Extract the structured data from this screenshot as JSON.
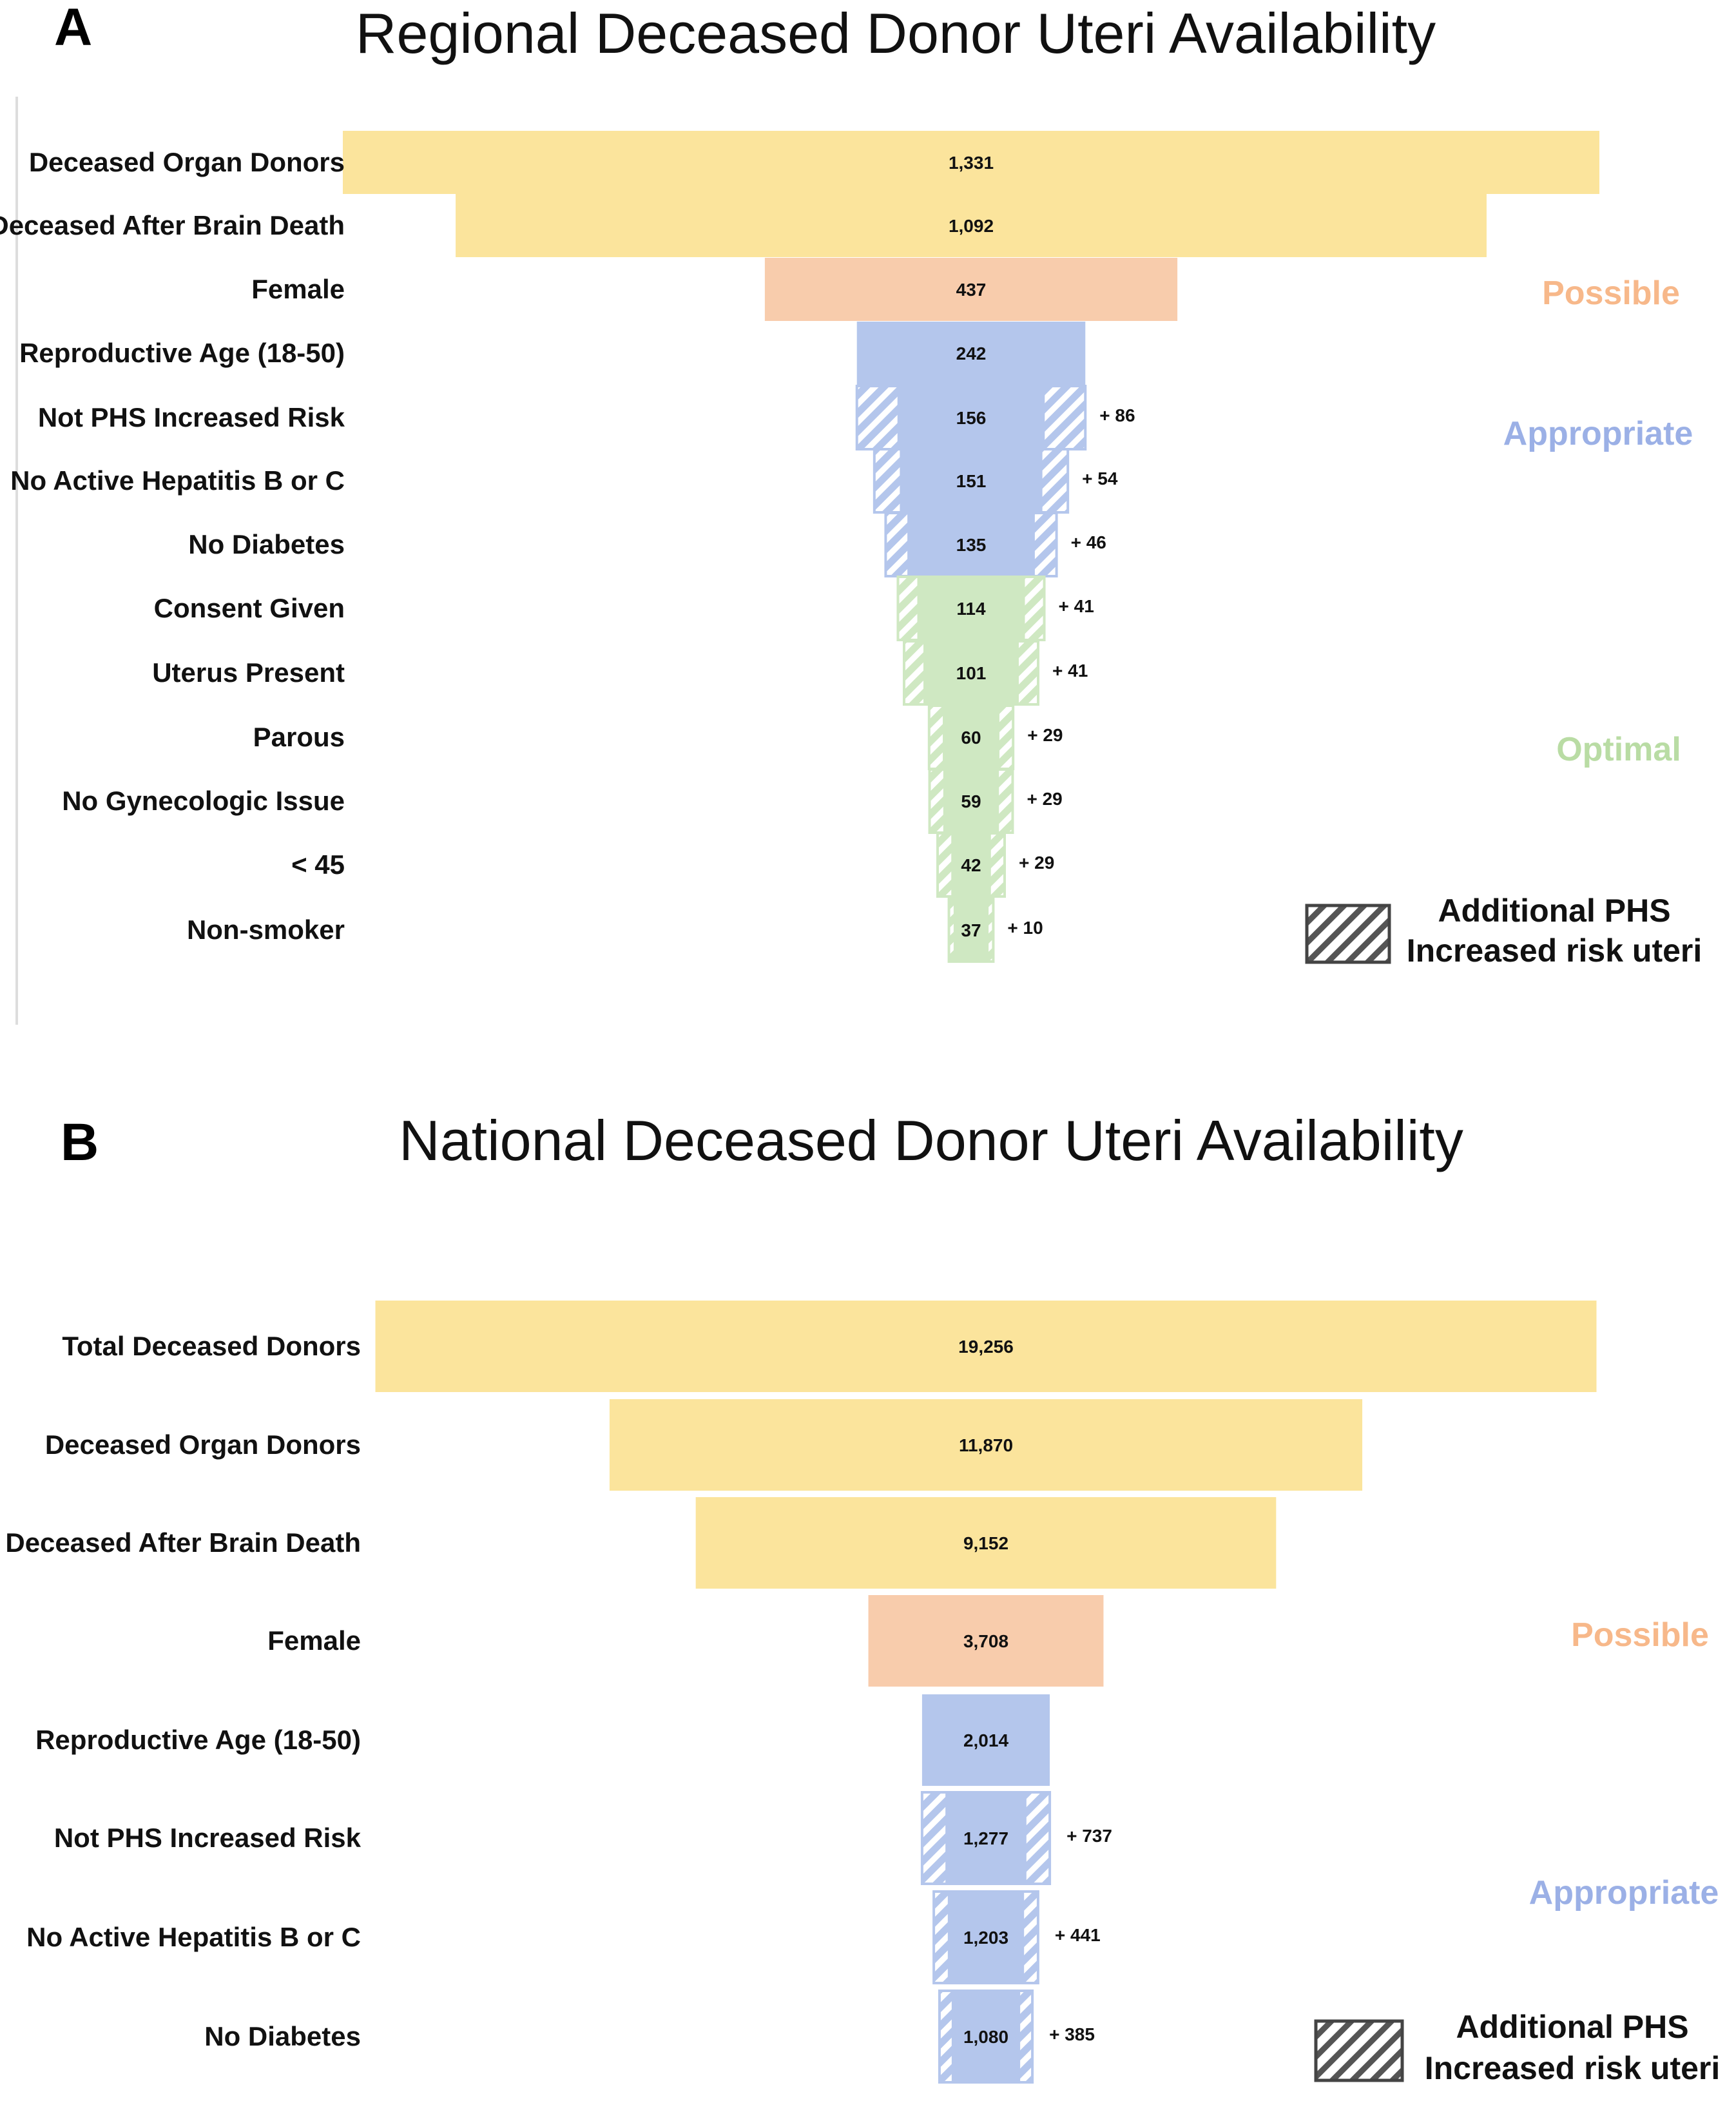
{
  "colors": {
    "yellow": "#fbe49c",
    "orange": "#f8ccac",
    "blue": "#b4c6ec",
    "green": "#cfe8c2",
    "possible_label": "#f7b88a",
    "appropriate_label": "#9bb0e6",
    "optimal_label": "#b9dca4"
  },
  "chart_data": [
    {
      "type": "funnel",
      "panel": "A",
      "title": "Regional Deceased Donor Uteri Availability",
      "stages": [
        {
          "label": "Deceased Organ Donors",
          "value": 1331,
          "value_label": "1,331",
          "extra": null,
          "extra_label": "",
          "color": "yellow"
        },
        {
          "label": "Deceased After Brain Death",
          "value": 1092,
          "value_label": "1,092",
          "extra": null,
          "extra_label": "",
          "color": "yellow"
        },
        {
          "label": "Female",
          "value": 437,
          "value_label": "437",
          "extra": null,
          "extra_label": "",
          "color": "orange"
        },
        {
          "label": "Reproductive Age (18-50)",
          "value": 242,
          "value_label": "242",
          "extra": null,
          "extra_label": "",
          "color": "blue"
        },
        {
          "label": "Not PHS Increased Risk",
          "value": 156,
          "value_label": "156",
          "extra": 86,
          "extra_label": "+ 86",
          "color": "blue"
        },
        {
          "label": "No Active Hepatitis B or C",
          "value": 151,
          "value_label": "151",
          "extra": 54,
          "extra_label": "+ 54",
          "color": "blue"
        },
        {
          "label": "No Diabetes",
          "value": 135,
          "value_label": "135",
          "extra": 46,
          "extra_label": "+ 46",
          "color": "blue"
        },
        {
          "label": "Consent Given",
          "value": 114,
          "value_label": "114",
          "extra": 41,
          "extra_label": "+ 41",
          "color": "green"
        },
        {
          "label": "Uterus Present",
          "value": 101,
          "value_label": "101",
          "extra": 41,
          "extra_label": "+ 41",
          "color": "green"
        },
        {
          "label": "Parous",
          "value": 60,
          "value_label": "60",
          "extra": 29,
          "extra_label": "+ 29",
          "color": "green"
        },
        {
          "label": "No Gynecologic Issue",
          "value": 59,
          "value_label": "59",
          "extra": 29,
          "extra_label": "+ 29",
          "color": "green"
        },
        {
          "label": "< 45",
          "value": 42,
          "value_label": "42",
          "extra": 29,
          "extra_label": "+ 29",
          "color": "green"
        },
        {
          "label": "Non-smoker",
          "value": 37,
          "value_label": "37",
          "extra": 10,
          "extra_label": "+ 10",
          "color": "green"
        }
      ],
      "categories": [
        {
          "label": "Possible",
          "color": "possible_label"
        },
        {
          "label": "Appropriate",
          "color": "appropriate_label"
        },
        {
          "label": "Optimal",
          "color": "optimal_label"
        }
      ],
      "legend": {
        "line1": "Additional PHS",
        "line2": "Increased risk uteri"
      }
    },
    {
      "type": "funnel",
      "panel": "B",
      "title": "National Deceased Donor Uteri Availability",
      "stages": [
        {
          "label": "Total Deceased Donors",
          "value": 19256,
          "value_label": "19,256",
          "extra": null,
          "extra_label": "",
          "color": "yellow"
        },
        {
          "label": "Deceased Organ Donors",
          "value": 11870,
          "value_label": "11,870",
          "extra": null,
          "extra_label": "",
          "color": "yellow"
        },
        {
          "label": "Deceased After Brain Death",
          "value": 9152,
          "value_label": "9,152",
          "extra": null,
          "extra_label": "",
          "color": "yellow"
        },
        {
          "label": "Female",
          "value": 3708,
          "value_label": "3,708",
          "extra": null,
          "extra_label": "",
          "color": "orange"
        },
        {
          "label": "Reproductive Age (18-50)",
          "value": 2014,
          "value_label": "2,014",
          "extra": null,
          "extra_label": "",
          "color": "blue"
        },
        {
          "label": "Not PHS Increased Risk",
          "value": 1277,
          "value_label": "1,277",
          "extra": 737,
          "extra_label": "+ 737",
          "color": "blue"
        },
        {
          "label": "No Active Hepatitis B or C",
          "value": 1203,
          "value_label": "1,203",
          "extra": 441,
          "extra_label": "+ 441",
          "color": "blue"
        },
        {
          "label": "No Diabetes",
          "value": 1080,
          "value_label": "1,080",
          "extra": 385,
          "extra_label": "+ 385",
          "color": "blue"
        }
      ],
      "categories": [
        {
          "label": "Possible",
          "color": "possible_label"
        },
        {
          "label": "Appropriate",
          "color": "appropriate_label"
        }
      ],
      "legend": {
        "line1": "Additional PHS",
        "line2": "Increased risk uteri"
      }
    }
  ]
}
